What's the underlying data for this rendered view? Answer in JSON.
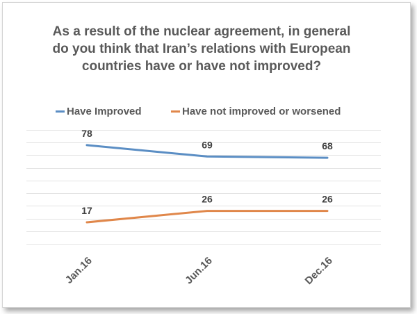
{
  "chart_data": {
    "type": "line",
    "title": "As a result of the nuclear agreement, in general do you think that Iran’s relations with European countries have or have not improved?",
    "categories": [
      "Jan.16",
      "Jun.16",
      "Dec.16"
    ],
    "series": [
      {
        "name": "Have Improved",
        "values": [
          78,
          69,
          68
        ],
        "color": "#5b8ec4"
      },
      {
        "name": "Have not improved or worsened",
        "values": [
          17,
          26,
          26
        ],
        "color": "#e0874a"
      }
    ],
    "ylim": [
      0,
      90
    ],
    "grid": true,
    "legend_position": "top",
    "xlabel": "",
    "ylabel": ""
  }
}
